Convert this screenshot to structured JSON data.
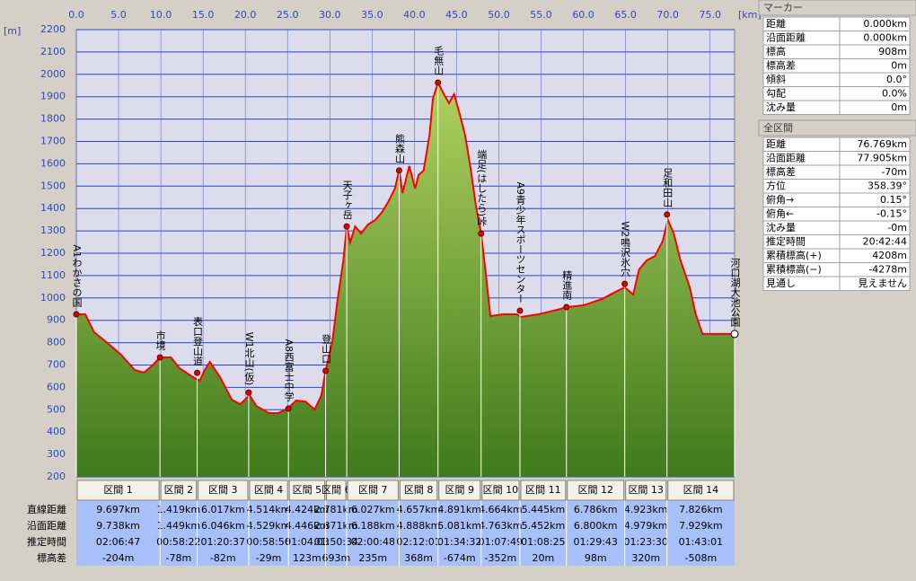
{
  "chart_data": {
    "type": "area",
    "x_unit": "[km]",
    "y_unit": "[m]",
    "xlim": [
      0,
      77.9
    ],
    "ylim": [
      200,
      2200
    ],
    "xticks": [
      {
        "value": 0,
        "label": "0.0"
      },
      {
        "value": 5,
        "label": "5.0"
      },
      {
        "value": 10,
        "label": "10.0"
      },
      {
        "value": 15,
        "label": "15.0"
      },
      {
        "value": 20,
        "label": "20.0"
      },
      {
        "value": 25,
        "label": "25.0"
      },
      {
        "value": 30,
        "label": "30.0"
      },
      {
        "value": 35,
        "label": "35.0"
      },
      {
        "value": 40,
        "label": "40.0"
      },
      {
        "value": 45,
        "label": "45.0"
      },
      {
        "value": 50,
        "label": "50.0"
      },
      {
        "value": 55,
        "label": "55.0"
      },
      {
        "value": 60,
        "label": "60.0"
      },
      {
        "value": 65,
        "label": "65.0"
      },
      {
        "value": 70,
        "label": "70.0"
      },
      {
        "value": 75,
        "label": "75.0"
      }
    ],
    "yticks": [
      200,
      300,
      400,
      500,
      600,
      700,
      800,
      900,
      1000,
      1100,
      1200,
      1300,
      1400,
      1500,
      1600,
      1700,
      1800,
      1900,
      2000,
      2100,
      2200
    ],
    "grid": true,
    "color": "#ff0000",
    "x": [
      0,
      1.06,
      2.1,
      3.7,
      5.3,
      6.9,
      8.0,
      9.0,
      9.9,
      11.2,
      12.2,
      13.8,
      14.6,
      15.2,
      15.8,
      17.0,
      18.4,
      19.4,
      20.5,
      21.3,
      22.8,
      23.9,
      25.0,
      26.0,
      27.1,
      28.2,
      29.0,
      29.5,
      30.3,
      30.9,
      31.6,
      32.0,
      32.4,
      33.0,
      33.7,
      34.5,
      35.4,
      36.2,
      36.9,
      37.7,
      38.2,
      38.6,
      39.0,
      39.4,
      40.1,
      40.5,
      41.1,
      41.8,
      42.2,
      42.8,
      43.5,
      44.1,
      44.7,
      45.4,
      46.0,
      46.7,
      47.3,
      47.9,
      48.4,
      49.0,
      50.5,
      52.1,
      52.6,
      54.7,
      56.9,
      58.1,
      60.0,
      62.2,
      63.8,
      64.9,
      65.9,
      66.6,
      67.5,
      68.5,
      69.4,
      70.0,
      70.7,
      71.5,
      72.6,
      73.3,
      74.1,
      77.9
    ],
    "values": [
      927,
      927,
      847,
      798,
      746,
      678,
      666,
      698,
      734,
      734,
      686,
      646,
      630,
      678,
      714,
      646,
      545,
      525,
      565,
      517,
      485,
      485,
      505,
      541,
      537,
      501,
      565,
      674,
      806,
      987,
      1168,
      1320,
      1248,
      1320,
      1288,
      1328,
      1349,
      1385,
      1429,
      1489,
      1570,
      1469,
      1529,
      1590,
      1489,
      1550,
      1570,
      1730,
      1891,
      1963,
      1911,
      1871,
      1911,
      1818,
      1730,
      1570,
      1409,
      1288,
      1128,
      919,
      927,
      927,
      915,
      927,
      947,
      959,
      967,
      995,
      1027,
      1047,
      1015,
      1128,
      1168,
      1188,
      1256,
      1349,
      1288,
      1168,
      1047,
      927,
      839,
      839
    ],
    "waypoints": [
      {
        "label": "A1わかさの国",
        "km": 0,
        "elevation": 927
      },
      {
        "label": "市境",
        "km": 9.9,
        "elevation": 734
      },
      {
        "label": "表口登山道",
        "km": 14.3,
        "elevation": 665
      },
      {
        "label": "W1北山(仮)",
        "km": 20.4,
        "elevation": 577
      },
      {
        "label": "A8西富士中学",
        "km": 25.1,
        "elevation": 505
      },
      {
        "label": "登山口",
        "km": 29.5,
        "elevation": 674
      },
      {
        "label": "天子ヶ岳",
        "km": 32.0,
        "elevation": 1320
      },
      {
        "label": "熊森山",
        "km": 38.2,
        "elevation": 1570
      },
      {
        "label": "毛無山",
        "km": 42.8,
        "elevation": 1963
      },
      {
        "label": "端足(はしたら)峠",
        "km": 47.9,
        "elevation": 1288
      },
      {
        "label": "A9青少年スポーツセンター",
        "km": 52.5,
        "elevation": 943
      },
      {
        "label": "精進南",
        "km": 58.0,
        "elevation": 959
      },
      {
        "label": "W2鳴沢氷穴",
        "km": 64.9,
        "elevation": 1063
      },
      {
        "label": "足和田山",
        "km": 69.9,
        "elevation": 1373
      },
      {
        "label": "河口湖大池公園",
        "km": 77.9,
        "elevation": 839
      }
    ]
  },
  "segment_table": {
    "row_labels": [
      "直線距離",
      "沿面距離",
      "推定時間",
      "標高差"
    ],
    "segments": [
      {
        "name": "区間 1",
        "cells": [
          "9.697km",
          "9.738km",
          "02:06:47",
          "-204m"
        ]
      },
      {
        "name": "区間 2",
        "cells": [
          "1.419km",
          "1.449km",
          "00:58:22",
          "-78m"
        ]
      },
      {
        "name": "区間 3",
        "cells": [
          "6.017km",
          "6.046km",
          "01:20:37",
          "-82m"
        ]
      },
      {
        "name": "区間 4",
        "cells": [
          "4.514km",
          "4.529km",
          "00:58:56",
          "-29m"
        ]
      },
      {
        "name": "区間 5",
        "cells": [
          "4.424km",
          "4.446km",
          "01:04:03",
          "123m"
        ]
      },
      {
        "name": "区間 6",
        "cells": [
          "2.781km",
          "2.871km",
          "01:50:34",
          "693m"
        ]
      },
      {
        "name": "区間 7",
        "cells": [
          "6.027km",
          "6.188km",
          "02:00:48",
          "235m"
        ]
      },
      {
        "name": "区間 8",
        "cells": [
          "4.657km",
          "4.888km",
          "02:12:01",
          "368m"
        ]
      },
      {
        "name": "区間 9",
        "cells": [
          "4.891km",
          "5.081km",
          "01:34:32",
          "-674m"
        ]
      },
      {
        "name": "区間 10",
        "cells": [
          "4.664km",
          "4.763km",
          "01:07:49",
          "-352m"
        ]
      },
      {
        "name": "区間 11",
        "cells": [
          "5.445km",
          "5.452km",
          "01:08:25",
          "20m"
        ]
      },
      {
        "name": "区間 12",
        "cells": [
          "6.786km",
          "6.800km",
          "01:29:43",
          "98m"
        ]
      },
      {
        "name": "区間 13",
        "cells": [
          "4.923km",
          "4.979km",
          "01:23:30",
          "320m"
        ]
      },
      {
        "name": "区間 14",
        "cells": [
          "7.826km",
          "7.929km",
          "01:43:01",
          "-508m"
        ]
      }
    ]
  },
  "marker_panel": {
    "title": "マーカー",
    "rows": [
      [
        "距離",
        "0.000km"
      ],
      [
        "沿面距離",
        "0.000km"
      ],
      [
        "標高",
        "908m"
      ],
      [
        "標高差",
        "0m"
      ],
      [
        "傾斜",
        "0.0°"
      ],
      [
        "勾配",
        "0.0%"
      ],
      [
        "沈み量",
        "0m"
      ]
    ]
  },
  "total_panel": {
    "title": "全区間",
    "rows": [
      [
        "距離",
        "76.769km"
      ],
      [
        "沿面距離",
        "77.905km"
      ],
      [
        "標高差",
        "-70m"
      ],
      [
        "方位",
        "358.39°"
      ],
      [
        "俯角→",
        "0.15°"
      ],
      [
        "俯角←",
        "-0.15°"
      ],
      [
        "沈み量",
        "-0m"
      ],
      [
        "推定時間",
        "20:42:44"
      ],
      [
        "累積標高(+)",
        "4208m"
      ],
      [
        "累積標高(−)",
        "-4278m"
      ],
      [
        "見通し",
        "見えません"
      ]
    ]
  }
}
